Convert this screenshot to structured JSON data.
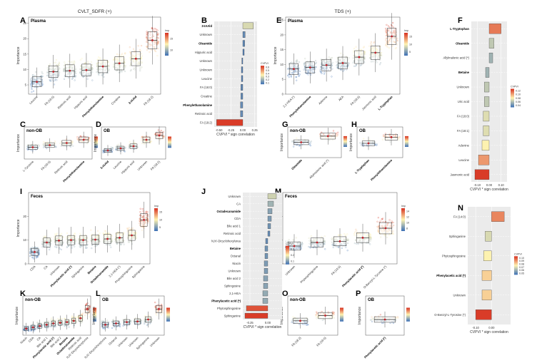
{
  "labels": [
    "A",
    "B",
    "C",
    "D",
    "E",
    "F",
    "G",
    "H",
    "I",
    "J",
    "K",
    "L",
    "M",
    "N",
    "O",
    "P"
  ],
  "box_panels": [
    {
      "id": "A",
      "letter": "A",
      "title": "CVLT_SDFR (+)",
      "tag": "Plasma",
      "ylabel": "Importance",
      "ylim": [
        2,
        27
      ],
      "yticks": [
        5,
        10,
        15,
        20,
        25
      ],
      "categories": [
        {
          "label": "Leucine",
          "bold": false
        },
        {
          "label": "FA (16:0)",
          "bold": false
        },
        {
          "label": "Retinoic acid",
          "bold": false
        },
        {
          "label": "Hippuric acid",
          "bold": false
        },
        {
          "label": "Phenylethanolamine",
          "bold": true
        },
        {
          "label": "Creatine",
          "bold": false
        },
        {
          "label": "3-IAAld",
          "bold": true
        },
        {
          "label": "FA (18:2)",
          "bold": false
        }
      ],
      "medians": [
        6,
        9.3,
        9.6,
        9.8,
        11,
        12,
        13.5,
        19.5
      ],
      "legend_title": "Imp",
      "legend_ticks": [
        "15",
        "10"
      ]
    },
    {
      "id": "C",
      "letter": "C",
      "title": "",
      "tag": "non-OB",
      "ylabel": "Importance",
      "ylim": [
        0,
        30
      ],
      "yticks": [],
      "categories": [
        {
          "label": "L-Tyrosine",
          "bold": false
        },
        {
          "label": "FA (16:0)",
          "bold": false
        },
        {
          "label": "Retinoic acid",
          "bold": false
        },
        {
          "label": "Phenylethanolamine",
          "bold": true
        }
      ],
      "medians": [
        11,
        13,
        15,
        18
      ],
      "legend_title": "",
      "legend_ticks": []
    },
    {
      "id": "D",
      "letter": "D",
      "title": "",
      "tag": "OB",
      "ylabel": "Importance",
      "ylim": [
        0,
        30
      ],
      "yticks": [],
      "categories": [
        {
          "label": "3-IAAld",
          "bold": true
        },
        {
          "label": "Leucine",
          "bold": false
        },
        {
          "label": "Hippuric acid",
          "bold": false
        },
        {
          "label": "Unknown",
          "bold": false
        },
        {
          "label": "FA (18:2)",
          "bold": false
        }
      ],
      "medians": [
        8,
        10,
        12,
        18,
        22
      ],
      "legend_title": "",
      "legend_ticks": []
    },
    {
      "id": "E",
      "letter": "E",
      "title": "TDS (+)",
      "tag": "Plasma",
      "ylabel": "Importance",
      "ylim": [
        0,
        26
      ],
      "yticks": [
        0,
        5,
        10,
        15,
        20,
        25
      ],
      "categories": [
        {
          "label": "2,1-HEA (*)",
          "bold": false
        },
        {
          "label": "Phenylethanolamine",
          "bold": true
        },
        {
          "label": "Adenine",
          "bold": false
        },
        {
          "label": "AEA",
          "bold": false
        },
        {
          "label": "FA (18:0)",
          "bold": false
        },
        {
          "label": "Jasmonic acid",
          "bold": false
        },
        {
          "label": "L-Tryptophan",
          "bold": true
        }
      ],
      "medians": [
        8.5,
        9,
        9.8,
        10.5,
        12.5,
        14,
        19.5
      ],
      "legend_title": "Imp",
      "legend_ticks": [
        "15",
        "10",
        "5"
      ]
    },
    {
      "id": "G",
      "letter": "G",
      "title": "",
      "tag": "non-OB",
      "ylabel": "Importance",
      "ylim": [
        0,
        30
      ],
      "yticks": [],
      "categories": [
        {
          "label": "Oleamide",
          "bold": true
        },
        {
          "label": "Allylmalonic acid (*)",
          "bold": false
        }
      ],
      "medians": [
        15,
        21
      ],
      "legend_title": "",
      "legend_ticks": []
    },
    {
      "id": "H",
      "letter": "H",
      "title": "",
      "tag": "OB",
      "ylabel": "Importance",
      "ylim": [
        0,
        30
      ],
      "yticks": [],
      "categories": [
        {
          "label": "L-Tryptophan",
          "bold": true
        },
        {
          "label": "Phenylethanolamine",
          "bold": true
        }
      ],
      "medians": [
        14,
        20
      ],
      "legend_title": "",
      "legend_ticks": []
    },
    {
      "id": "I",
      "letter": "I",
      "title": "",
      "tag": "Feces",
      "ylabel": "Importance",
      "ylim": [
        0,
        30
      ],
      "yticks": [
        0,
        10,
        20
      ],
      "categories": [
        {
          "label": "CDA",
          "bold": false
        },
        {
          "label": "CA",
          "bold": false
        },
        {
          "label": "Unknown",
          "bold": false
        },
        {
          "label": "Phenylacetic acid (*)",
          "bold": true
        },
        {
          "label": "Sphingosine",
          "bold": false
        },
        {
          "label": "Betaine",
          "bold": true
        },
        {
          "label": "Octadecanamide",
          "bold": true
        },
        {
          "label": "2,1-HEA (*)",
          "bold": false
        },
        {
          "label": "Phytosphingosine",
          "bold": false
        },
        {
          "label": "Sphinganine",
          "bold": false
        }
      ],
      "medians": [
        5,
        9,
        9.8,
        10,
        10,
        10.2,
        10.5,
        11,
        12,
        18.5
      ],
      "legend_title": "Imp",
      "legend_ticks": [
        "15",
        "10",
        "5"
      ]
    },
    {
      "id": "K",
      "letter": "K",
      "title": "",
      "tag": "non-OB",
      "ylabel": "Importance",
      "ylim": [
        0,
        30
      ],
      "yticks": [],
      "categories": [
        {
          "label": "Niacin",
          "bold": false
        },
        {
          "label": "CDA",
          "bold": false
        },
        {
          "label": "CA",
          "bold": false
        },
        {
          "label": "Bile acid 1",
          "bold": false
        },
        {
          "label": "Phenylacetic acid (*)",
          "bold": true
        },
        {
          "label": "Bile acid 2",
          "bold": false
        },
        {
          "label": "Betaine",
          "bold": true
        },
        {
          "label": "Octadecanamide",
          "bold": true
        },
        {
          "label": "Retinoic acid",
          "bold": false
        },
        {
          "label": "N,N'-Dicyclohexylurea",
          "bold": false
        }
      ],
      "medians": [
        5,
        6,
        7,
        8,
        9,
        9.5,
        10,
        11,
        13,
        20
      ],
      "legend_title": "",
      "legend_ticks": []
    },
    {
      "id": "L",
      "letter": "L",
      "title": "",
      "tag": "OB",
      "ylabel": "Importance",
      "ylim": [
        0,
        30
      ],
      "yticks": [],
      "categories": [
        {
          "label": "N,N'-Dicyclohexylurea",
          "bold": false
        },
        {
          "label": "Octanal",
          "bold": false
        },
        {
          "label": "Unknown",
          "bold": false
        },
        {
          "label": "Unknown",
          "bold": false
        },
        {
          "label": "Sphinganine",
          "bold": false
        },
        {
          "label": "Unknown",
          "bold": false
        }
      ],
      "medians": [
        8,
        9,
        10,
        10.5,
        12,
        20
      ],
      "legend_title": "",
      "legend_ticks": []
    },
    {
      "id": "M",
      "letter": "M",
      "title": "",
      "tag": "Feces",
      "ylabel": "Importance",
      "ylim": [
        0,
        30
      ],
      "yticks": [
        0,
        10,
        20
      ],
      "categories": [
        {
          "label": "Unknown",
          "bold": false
        },
        {
          "label": "Phytosphingosine",
          "bold": false
        },
        {
          "label": "FA (14:0)",
          "bold": false
        },
        {
          "label": "Phenylacetic acid (*)",
          "bold": true
        },
        {
          "label": "O-Benzyl-L-Tyrosine (*)",
          "bold": false
        }
      ],
      "medians": [
        7.5,
        9,
        9.5,
        11,
        15
      ],
      "legend_title": "Imp",
      "legend_ticks": [
        "14",
        "12",
        "10",
        "8"
      ]
    },
    {
      "id": "O",
      "letter": "O",
      "title": "",
      "tag": "non-OB",
      "ylabel": "Importance",
      "ylim": [
        0,
        30
      ],
      "yticks": [],
      "categories": [
        {
          "label": "FA (18:2)",
          "bold": false
        },
        {
          "label": "FA (16:0)",
          "bold": false
        }
      ],
      "medians": [
        11,
        15
      ],
      "legend_title": "",
      "legend_ticks": []
    },
    {
      "id": "P",
      "letter": "P",
      "title": "",
      "tag": "OB",
      "ylabel": "Importance",
      "ylim": [
        0,
        30
      ],
      "yticks": [],
      "categories": [
        {
          "label": "Phenylacetic acid (*)",
          "bold": true
        }
      ],
      "medians": [
        12
      ],
      "legend_title": "",
      "legend_ticks": []
    }
  ],
  "bar_panels": [
    {
      "id": "B",
      "letter": "B",
      "xlabel": "CVPVI * sign correlation",
      "xlim": [
        -0.6,
        0.3
      ],
      "xticks": [
        "-0.50",
        "-0.25",
        "0.00",
        "0.25"
      ],
      "legend_title": "CVPVI",
      "legend_ticks": [
        "0.6",
        "0.5",
        "0.4",
        "0.3",
        "0.2",
        "0.1"
      ],
      "bars": [
        {
          "label": "3-IAAld",
          "value": 0.22,
          "bold": true
        },
        {
          "label": "Unknown",
          "value": 0.05,
          "bold": false
        },
        {
          "label": "Oleamide",
          "value": 0.04,
          "bold": true
        },
        {
          "label": "Hippuric acid",
          "value": 0.03,
          "bold": false
        },
        {
          "label": "Unknown",
          "value": -0.02,
          "bold": false
        },
        {
          "label": "Unknown",
          "value": -0.03,
          "bold": false
        },
        {
          "label": "Leucine",
          "value": -0.03,
          "bold": false
        },
        {
          "label": "FA (16:0)",
          "value": -0.04,
          "bold": false
        },
        {
          "label": "Creatine",
          "value": -0.04,
          "bold": false
        },
        {
          "label": "Phenylethanolamine",
          "value": -0.05,
          "bold": true
        },
        {
          "label": "Retinoic acid",
          "value": -0.05,
          "bold": false
        },
        {
          "label": "FA (18:2)",
          "value": -0.55,
          "bold": false
        }
      ]
    },
    {
      "id": "F",
      "letter": "F",
      "xlabel": "CVPVI * sign correlation",
      "xlim": [
        -0.15,
        0.15
      ],
      "xticks": [
        "-0.10",
        "0.00",
        "0.10"
      ],
      "legend_title": "CVPVI",
      "legend_ticks": [
        "0.12",
        "0.10",
        "0.08",
        "0.06",
        "0.04"
      ],
      "bars": [
        {
          "label": "L-Tryptophan",
          "value": 0.1,
          "bold": true
        },
        {
          "label": "Oleamide",
          "value": 0.04,
          "bold": true
        },
        {
          "label": "Allylmalonic acid (*)",
          "value": 0.03,
          "bold": false
        },
        {
          "label": "Betaine",
          "value": -0.03,
          "bold": true
        },
        {
          "label": "Unknown",
          "value": -0.04,
          "bold": false
        },
        {
          "label": "Uric acid",
          "value": -0.04,
          "bold": false
        },
        {
          "label": "FA (18:0)",
          "value": -0.05,
          "bold": false
        },
        {
          "label": "FA (18:1)",
          "value": -0.05,
          "bold": false
        },
        {
          "label": "Adenine",
          "value": -0.06,
          "bold": false
        },
        {
          "label": "Leucine",
          "value": -0.09,
          "bold": false
        },
        {
          "label": "Jasmonic acid",
          "value": -0.12,
          "bold": false
        }
      ]
    },
    {
      "id": "J",
      "letter": "J",
      "xlabel": "CVPVI * sign correlation",
      "xlim": [
        -0.35,
        0.2
      ],
      "xticks": [
        "-0.25",
        "0.00"
      ],
      "legend_title": "CVPVI",
      "legend_ticks": [
        "0.3",
        "0.2",
        "0.1"
      ],
      "bars": [
        {
          "label": "Unknown",
          "value": 0.12,
          "bold": false
        },
        {
          "label": "CA",
          "value": 0.08,
          "bold": false
        },
        {
          "label": "Octadecanamide",
          "value": 0.06,
          "bold": true
        },
        {
          "label": "CDA",
          "value": 0.05,
          "bold": false
        },
        {
          "label": "Bile acid 1",
          "value": 0.04,
          "bold": false
        },
        {
          "label": "Retinoic acid",
          "value": 0.03,
          "bold": false
        },
        {
          "label": "N,N'-Dicyclohexylurea",
          "value": -0.03,
          "bold": false
        },
        {
          "label": "Betaine",
          "value": -0.04,
          "bold": true
        },
        {
          "label": "Octanal",
          "value": -0.04,
          "bold": false
        },
        {
          "label": "Niacin",
          "value": -0.05,
          "bold": false
        },
        {
          "label": "Unknown",
          "value": -0.05,
          "bold": false
        },
        {
          "label": "Bile acid 2",
          "value": -0.06,
          "bold": false
        },
        {
          "label": "Sphingosine",
          "value": -0.06,
          "bold": false
        },
        {
          "label": "2,1-HEA",
          "value": -0.07,
          "bold": false
        },
        {
          "label": "Phenylacetic acid (*)",
          "value": -0.07,
          "bold": true
        },
        {
          "label": "Phytosphingosine",
          "value": -0.3,
          "bold": false
        },
        {
          "label": "Sphinganine",
          "value": -0.32,
          "bold": false
        }
      ]
    },
    {
      "id": "N",
      "letter": "N",
      "xlabel": "CVPVI * sign correlation",
      "xlim": [
        -0.15,
        0.12
      ],
      "xticks": [
        "-0.10",
        "0.00"
      ],
      "legend_title": "CVPVI",
      "legend_ticks": [
        "0.10",
        "0.09",
        "0.08",
        "0.07",
        "0.06",
        "0.05"
      ],
      "bars": [
        {
          "label": "FA (14:0)",
          "value": 0.08,
          "bold": false
        },
        {
          "label": "Sphinganine",
          "value": -0.04,
          "bold": false
        },
        {
          "label": "Phytosphingosine",
          "value": -0.05,
          "bold": false
        },
        {
          "label": "Phenylacetic acid (*)",
          "value": -0.06,
          "bold": true
        },
        {
          "label": "Unknown",
          "value": -0.06,
          "bold": false
        },
        {
          "label": "O-Benzyl-L-Tyrosine (*)",
          "value": -0.1,
          "bold": false
        }
      ]
    }
  ],
  "colors": {
    "low": "#3b6fb6",
    "mid": "#fff3b0",
    "high": "#d7301f",
    "box_fill": "#f3f5d8",
    "panel_bg": "#ebebeb",
    "grid": "#ffffff"
  }
}
